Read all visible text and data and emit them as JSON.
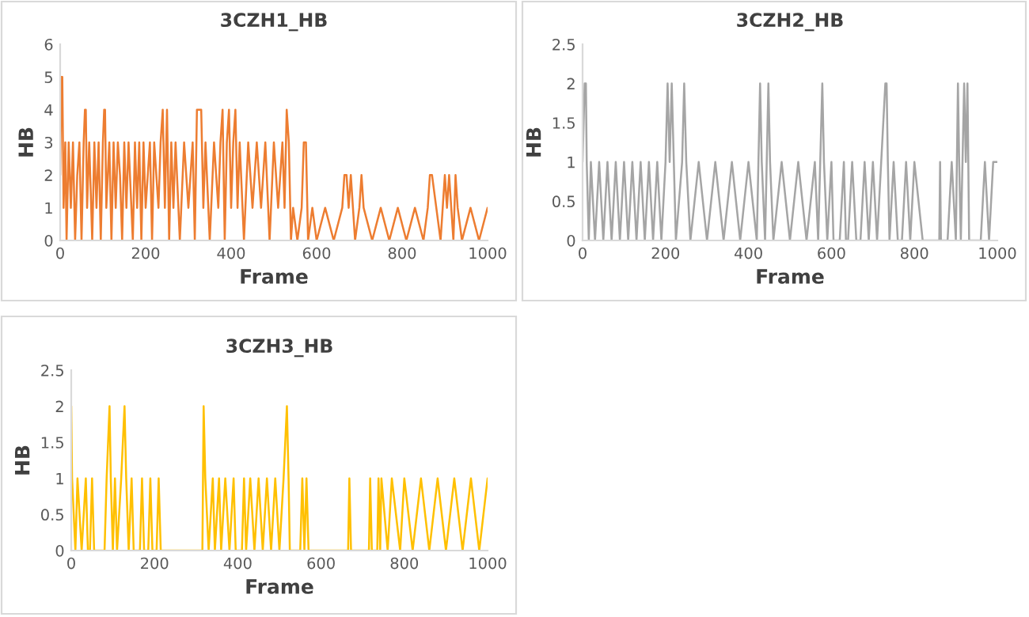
{
  "chart_data": [
    {
      "type": "line",
      "title": "3CZH1_HB",
      "xlabel": "Frame",
      "ylabel": "HB",
      "xlim": [
        0,
        1000
      ],
      "xticks": [
        0,
        200,
        400,
        600,
        800,
        1000
      ],
      "ylim": [
        0,
        6
      ],
      "yticks": [
        0,
        1,
        2,
        3,
        4,
        5,
        6
      ],
      "series": [
        {
          "color": "#ed7d31",
          "x": [
            0,
            3,
            5,
            8,
            12,
            15,
            20,
            25,
            30,
            35,
            40,
            45,
            50,
            55,
            58,
            60,
            63,
            68,
            75,
            80,
            85,
            90,
            95,
            100,
            103,
            105,
            108,
            115,
            120,
            125,
            130,
            135,
            140,
            145,
            150,
            155,
            160,
            170,
            175,
            180,
            185,
            190,
            195,
            200,
            210,
            215,
            220,
            230,
            235,
            240,
            245,
            250,
            255,
            260,
            265,
            270,
            280,
            290,
            300,
            310,
            315,
            320,
            325,
            330,
            335,
            340,
            350,
            360,
            370,
            375,
            380,
            385,
            390,
            395,
            400,
            405,
            410,
            415,
            420,
            430,
            440,
            450,
            460,
            470,
            480,
            490,
            500,
            510,
            520,
            525,
            530,
            535,
            540,
            545,
            555,
            565,
            570,
            575,
            580,
            590,
            600,
            620,
            640,
            660,
            665,
            670,
            675,
            680,
            690,
            700,
            705,
            710,
            730,
            750,
            770,
            790,
            810,
            830,
            850,
            860,
            865,
            870,
            880,
            890,
            900,
            905,
            910,
            920,
            925,
            930,
            940,
            960,
            980,
            1000
          ],
          "values": [
            2,
            5,
            5,
            1,
            3,
            0,
            3,
            1,
            3,
            0,
            2,
            3,
            0,
            3,
            4,
            4,
            1,
            3,
            0,
            3,
            1,
            3,
            0,
            3,
            4,
            4,
            1,
            3,
            0,
            3,
            1,
            3,
            2,
            0,
            3,
            1,
            3,
            0,
            3,
            1,
            3,
            0,
            3,
            1,
            3,
            0,
            3,
            1,
            3,
            4,
            1,
            4,
            0,
            3,
            1,
            3,
            0,
            3,
            1,
            3,
            0,
            4,
            4,
            4,
            1,
            3,
            0,
            3,
            1,
            3,
            4,
            0,
            3,
            4,
            1,
            3,
            4,
            1,
            3,
            0,
            3,
            1,
            3,
            1,
            3,
            0,
            3,
            1,
            3,
            1,
            4,
            3,
            0,
            1,
            0,
            1,
            3,
            3,
            0,
            1,
            0,
            1,
            0,
            1,
            2,
            2,
            1,
            2,
            0,
            1,
            2,
            1,
            0,
            1,
            0,
            1,
            0,
            1,
            0,
            1,
            2,
            2,
            1,
            0,
            2,
            1,
            2,
            0,
            2,
            1,
            0,
            1,
            0,
            1
          ]
        }
      ]
    },
    {
      "type": "line",
      "title": "3CZH2_HB",
      "xlabel": "Frame",
      "ylabel": "HB",
      "xlim": [
        0,
        1000
      ],
      "xticks": [
        0,
        200,
        400,
        600,
        800,
        1000
      ],
      "ylim": [
        0,
        2.5
      ],
      "yticks": [
        0,
        0.5,
        1,
        1.5,
        2,
        2.5
      ],
      "series": [
        {
          "color": "#a5a5a5",
          "x": [
            0,
            5,
            8,
            10,
            15,
            20,
            30,
            40,
            50,
            60,
            70,
            80,
            90,
            100,
            110,
            120,
            130,
            140,
            150,
            160,
            170,
            180,
            190,
            200,
            205,
            210,
            215,
            220,
            225,
            240,
            245,
            250,
            260,
            280,
            300,
            320,
            340,
            360,
            380,
            400,
            420,
            428,
            432,
            440,
            448,
            452,
            460,
            480,
            500,
            520,
            540,
            560,
            568,
            578,
            582,
            590,
            600,
            605,
            620,
            630,
            635,
            640,
            650,
            660,
            670,
            680,
            690,
            700,
            710,
            720,
            730,
            733,
            736,
            740,
            750,
            760,
            770,
            780,
            790,
            800,
            820,
            860,
            862,
            864,
            880,
            890,
            900,
            905,
            908,
            912,
            920,
            924,
            928,
            932,
            940,
            960,
            970,
            980,
            990,
            1000
          ],
          "values": [
            1,
            2,
            2,
            1,
            0,
            1,
            0,
            1,
            0,
            1,
            0,
            1,
            0,
            1,
            0,
            1,
            0,
            1,
            0,
            1,
            0,
            1,
            0,
            1,
            2,
            1,
            2,
            1,
            0,
            1,
            2,
            1,
            0,
            1,
            0,
            1,
            0,
            1,
            0,
            1,
            0,
            2,
            1,
            0,
            2,
            1,
            0,
            1,
            0,
            1,
            0,
            1,
            0,
            2,
            1,
            0,
            1,
            0,
            0,
            1,
            0,
            0,
            1,
            0,
            0,
            1,
            0,
            1,
            0,
            1,
            2,
            2,
            1,
            0,
            1,
            0,
            0,
            1,
            0,
            1,
            0,
            0,
            1,
            0,
            0,
            1,
            0,
            2,
            1,
            0,
            2,
            1,
            2,
            0,
            0,
            0,
            1,
            0,
            1,
            1
          ]
        }
      ]
    },
    {
      "type": "line",
      "title": "3CZH3_HB",
      "xlabel": "Frame",
      "ylabel": "HB",
      "xlim": [
        0,
        1000
      ],
      "xticks": [
        0,
        200,
        400,
        600,
        800,
        1000
      ],
      "ylim": [
        0,
        2.5
      ],
      "yticks": [
        0,
        0.5,
        1,
        1.5,
        2,
        2.5
      ],
      "series": [
        {
          "color": "#ffc000",
          "x": [
            0,
            2,
            10,
            15,
            25,
            35,
            40,
            45,
            50,
            55,
            80,
            85,
            92,
            95,
            100,
            105,
            110,
            120,
            128,
            132,
            138,
            145,
            150,
            165,
            170,
            175,
            185,
            190,
            195,
            205,
            210,
            215,
            315,
            318,
            322,
            330,
            340,
            345,
            355,
            360,
            370,
            380,
            390,
            395,
            410,
            415,
            420,
            430,
            440,
            450,
            460,
            470,
            480,
            490,
            500,
            510,
            518,
            522,
            525,
            550,
            555,
            560,
            565,
            570,
            665,
            668,
            672,
            715,
            718,
            722,
            735,
            738,
            742,
            745,
            760,
            770,
            790,
            800,
            820,
            840,
            860,
            880,
            900,
            920,
            940,
            960,
            980,
            1000
          ],
          "values": [
            2,
            1,
            0,
            1,
            0,
            1,
            0,
            0,
            1,
            0,
            0,
            1,
            2,
            1,
            0,
            1,
            0,
            1,
            2,
            1,
            0,
            1,
            0,
            0,
            1,
            0,
            0,
            1,
            0,
            0,
            1,
            0,
            0,
            2,
            1,
            0,
            1,
            0,
            1,
            0,
            1,
            0,
            1,
            0,
            0,
            1,
            0,
            1,
            0,
            1,
            0,
            1,
            0,
            1,
            0,
            1,
            2,
            1,
            0,
            0,
            1,
            0,
            1,
            0,
            0,
            1,
            0,
            0,
            1,
            0,
            0,
            1,
            0,
            1,
            0,
            1,
            0,
            1,
            0,
            1,
            0,
            1,
            0,
            1,
            0,
            1,
            0,
            1
          ]
        }
      ]
    }
  ]
}
